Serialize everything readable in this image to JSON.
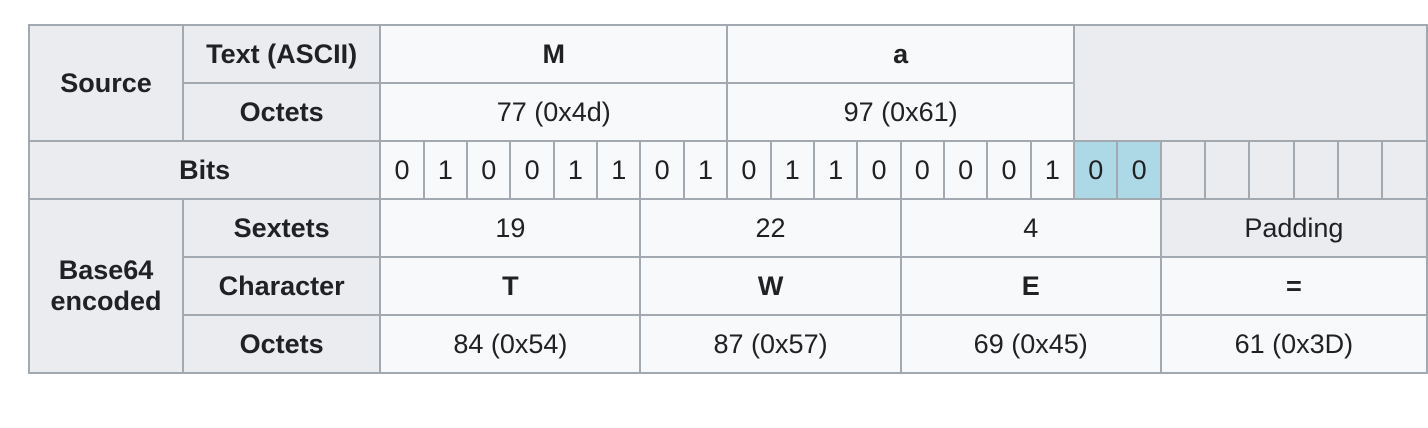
{
  "row_headers": {
    "source": "Source",
    "text_ascii": "Text (ASCII)",
    "octets": "Octets",
    "bits": "Bits",
    "base64_encoded_line1": "Base64",
    "base64_encoded_line2": "encoded",
    "sextets": "Sextets",
    "character": "Character",
    "encoded_octets": "Octets"
  },
  "source": {
    "chars": [
      "M",
      "a"
    ],
    "octets": [
      "77 (0x4d)",
      "97 (0x61)"
    ]
  },
  "bits": [
    "0",
    "1",
    "0",
    "0",
    "1",
    "1",
    "0",
    "1",
    "0",
    "1",
    "1",
    "0",
    "0",
    "0",
    "0",
    "1",
    "0",
    "0"
  ],
  "highlighted_bit_indices": [
    16,
    17
  ],
  "base64": {
    "sextets": [
      "19",
      "22",
      "4"
    ],
    "padding_label": "Padding",
    "characters": [
      "T",
      "W",
      "E",
      "="
    ],
    "octets": [
      "84 (0x54)",
      "87 (0x57)",
      "69 (0x45)",
      "61 (0x3D)"
    ]
  },
  "colors": {
    "header_bg": "#eaecf0",
    "cell_bg": "#f8f9fa",
    "highlight_bg": "#add8e6",
    "border": "#a2a9b1"
  }
}
